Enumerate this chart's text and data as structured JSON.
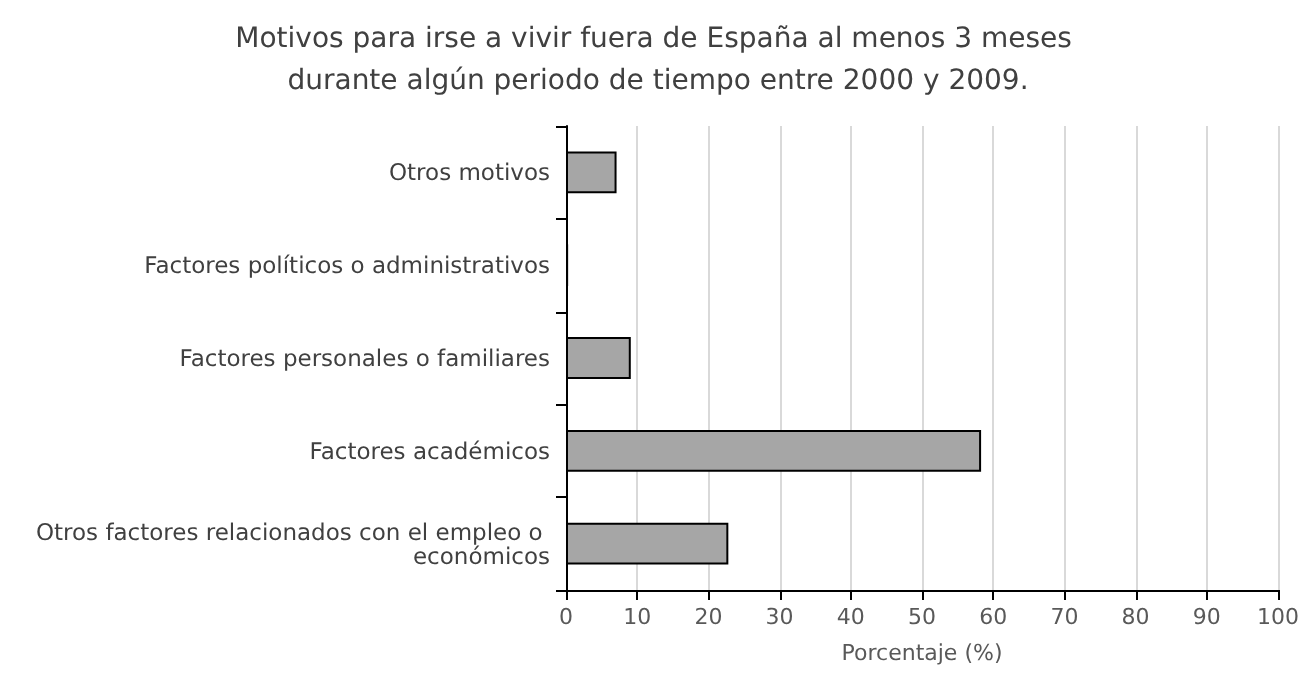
{
  "chart_data": {
    "type": "bar",
    "orientation": "horizontal",
    "title": "Motivos para irse a vivir fuera de España al menos 3 meses durante algún periodo de tiempo entre 2000 y 2009.",
    "xlabel": "Porcentaje (%)",
    "categories": [
      "Otros motivos",
      "Factores políticos o administrativos",
      "Factores personales o familiares",
      "Factores académicos",
      "Otros factores relacionados con el empleo o económicos"
    ],
    "values": [
      7.1,
      0.3,
      9.1,
      58.3,
      22.8
    ],
    "color": "#a6a6a6",
    "xlim": [
      0,
      100
    ],
    "xticks": [
      0,
      10,
      20,
      30,
      40,
      50,
      60,
      70,
      80,
      90,
      100
    ],
    "grid": "x"
  }
}
